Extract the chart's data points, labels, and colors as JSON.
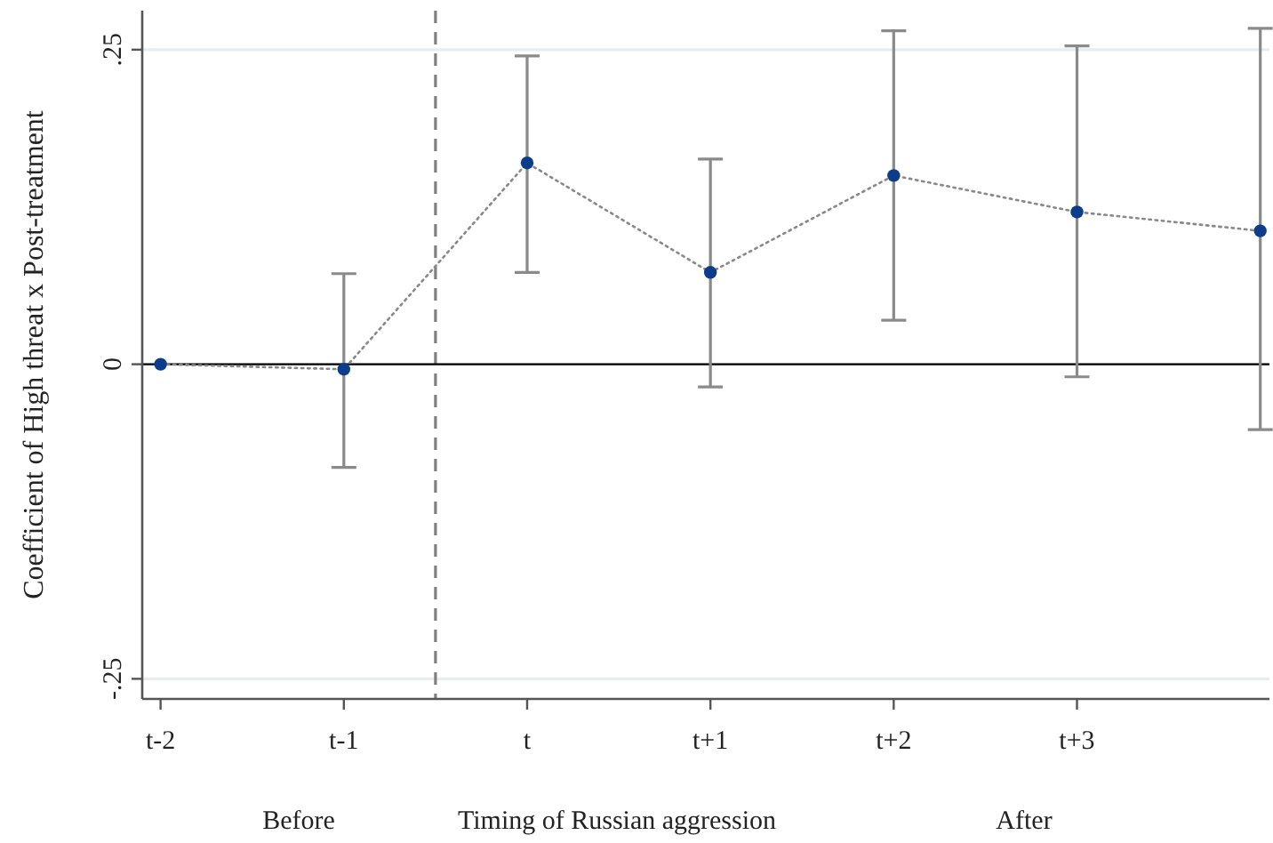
{
  "chart_data": {
    "type": "line",
    "ylabel": "Coefficient of High threat x Post-treatment",
    "categories": [
      "t-2",
      "t-1",
      "t",
      "t+1",
      "t+2",
      "t+3",
      null
    ],
    "ylim": [
      -0.266,
      0.281
    ],
    "yticks": [
      {
        "value": -0.25,
        "label": "-.25"
      },
      0,
      {
        "value": 0.25,
        "label": ".25"
      }
    ],
    "series": [
      {
        "color": "#0d3d8a",
        "values": [
          0,
          -0.004,
          0.16,
          0.073,
          0.15,
          0.121,
          0.106
        ],
        "errors": [
          null,
          [
            -0.082,
            0.072
          ],
          [
            0.073,
            0.245
          ],
          [
            -0.018,
            0.163
          ],
          [
            0.035,
            0.265
          ],
          [
            -0.01,
            0.253
          ],
          [
            -0.052,
            0.267
          ]
        ]
      }
    ],
    "marker": "circle",
    "line_style": "dotted",
    "grid": "y",
    "ref_lines": [
      {
        "axis": "y",
        "value": 0,
        "color": "#000000",
        "line_style": "solid"
      }
    ],
    "annotations": [
      "Before",
      "Timing of Russian aggression",
      "After"
    ]
  }
}
